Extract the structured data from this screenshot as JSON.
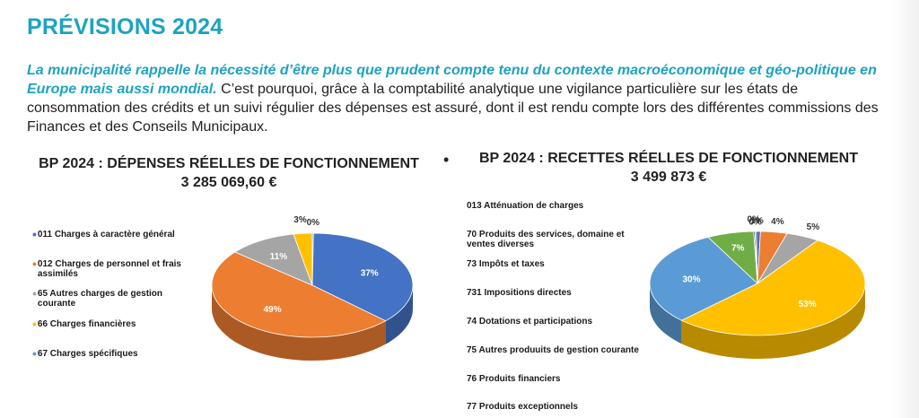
{
  "page": {
    "title": "PRÉVISIONS 2024",
    "intro_emphasis": "La municipalité rappelle la nécessité d’être plus que prudent compte tenu du contexte macroéconomique et géo-politique en Europe mais aussi mondial.",
    "intro_text": " C’est pourquoi, grâce à la comptabilité analytique une vigilance particulière sur les états de consommation des crédits et un suivi régulier des dépenses est assuré, dont il est rendu compte lors des différentes commissions des Finances et des Conseils Municipaux.",
    "bullet": "•"
  },
  "chart_data": [
    {
      "type": "pie",
      "title": "BP 2024 : DÉPENSES RÉELLES DE FONCTIONNEMENT",
      "subtitle": "3 285 069,60 €",
      "legend_position": "left",
      "categories": [
        "011 Charges à caractère général",
        "012 Charges de personnel et frais assimilés",
        "65 Autres charges de gestion courante",
        "66 Charges financières",
        "67 Charges spécifiques"
      ],
      "values": [
        37,
        49,
        11,
        3,
        0
      ],
      "labels": [
        "37%",
        "49%",
        "11%",
        "3%",
        "0%"
      ],
      "colors": [
        "#4472c4",
        "#ed7d31",
        "#a5a5a5",
        "#ffc000",
        "#5b9bd5"
      ]
    },
    {
      "type": "pie",
      "title": "BP 2024 : RECETTES RÉELLES DE FONCTIONNEMENT",
      "subtitle": "3 499 873 €",
      "legend_position": "left",
      "categories": [
        "013 Atténuation de charges",
        "70 Produits des services, domaine et ventes diverses",
        "73 Impôts et taxes",
        "731 Impositions directes",
        "74 Dotations et participations",
        "75 Autres produuits de gestion courante",
        "76 Produits financiers",
        "77 Produits exceptionnels"
      ],
      "values": [
        1,
        4,
        5,
        53,
        30,
        7,
        0,
        0
      ],
      "labels": [
        "1%",
        "4%",
        "5%",
        "53%",
        "30%",
        "7%",
        "0%",
        "0%"
      ],
      "colors": [
        "#4472c4",
        "#ed7d31",
        "#a5a5a5",
        "#ffc000",
        "#5b9bd5",
        "#70ad47",
        "#264478",
        "#9e480e"
      ]
    }
  ]
}
